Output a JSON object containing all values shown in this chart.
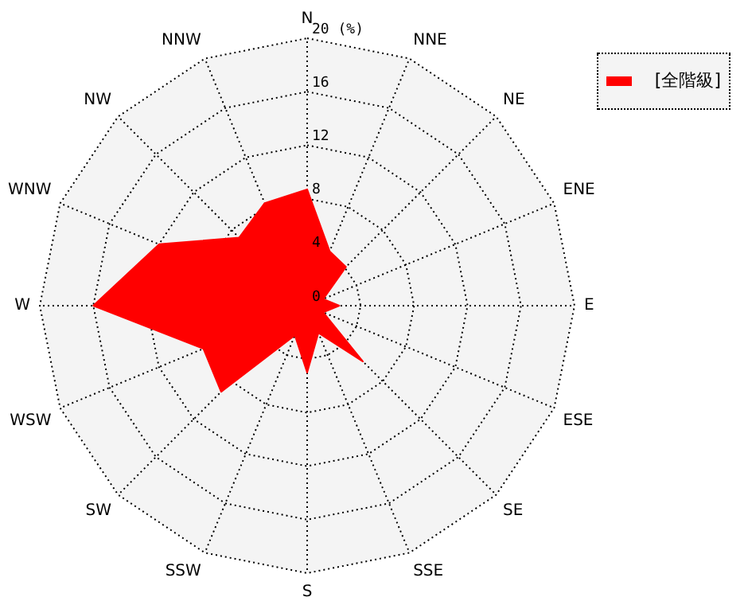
{
  "chart_data": {
    "type": "radar",
    "legend": "top right",
    "grid": true,
    "marker": "none",
    "categories": [
      "N",
      "NNE",
      "NE",
      "ENE",
      "E",
      "ESE",
      "SE",
      "SSE",
      "S",
      "SSW",
      "SW",
      "WSW",
      "W",
      "WNW",
      "NW",
      "NNW"
    ],
    "series": [
      {
        "name": "[全階級]",
        "color": "#ff0000",
        "values": [
          8.7,
          4.4,
          4.1,
          1.3,
          2.4,
          1.3,
          5.9,
          2.2,
          5.0,
          2.4,
          9.1,
          8.4,
          16.0,
          12.0,
          7.2,
          8.3
        ]
      }
    ],
    "ylim": [
      0,
      20
    ],
    "yticks": [
      0,
      4,
      8,
      12,
      16,
      {
        "value": 20,
        "label": "20 (%)"
      }
    ]
  }
}
